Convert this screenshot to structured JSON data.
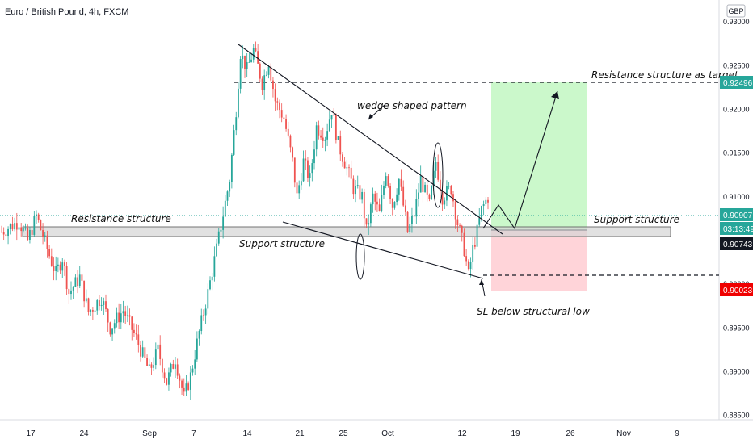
{
  "chart_data": {
    "type": "candlestick",
    "title": "Euro / British Pound, 4h, FXCM",
    "currency": "GBP",
    "ylim": [
      0.8845,
      0.9325
    ],
    "y_ticks": [
      "0.93000",
      "0.92500",
      "0.92000",
      "0.91500",
      "0.91000",
      "0.90500",
      "0.90000",
      "0.89500",
      "0.89000",
      "0.88500"
    ],
    "x_ticks": [
      "17",
      "24",
      "Sep",
      "7",
      "14",
      "21",
      "25",
      "Oct",
      "12",
      "19",
      "26",
      "Nov",
      "9"
    ],
    "colors": {
      "up": "#26a69a",
      "down": "#ef5350",
      "last_price": "#26a69a",
      "target_box": "#b9f6b9",
      "stop_box": "#ffcdd2"
    },
    "price_labels": {
      "target": "0.92496",
      "current": "0.90907",
      "countdown": "03:13:49",
      "entry": "0.90743",
      "stop": "0.90023"
    },
    "annotations": {
      "resistance_target": "Resistance structure as target",
      "wedge": "wedge shaped pattern",
      "resistance_left": "Resistance structure",
      "support_mid": "Support structure",
      "support_right": "Support structure",
      "sl_note": "SL below structural low"
    },
    "price_path": [
      [
        0,
        0.906
      ],
      [
        8,
        0.9072
      ],
      [
        12,
        0.905
      ],
      [
        16,
        0.9078
      ],
      [
        21,
        0.904
      ],
      [
        25,
        0.9012
      ],
      [
        28,
        0.903
      ],
      [
        31,
        0.899
      ],
      [
        36,
        0.9008
      ],
      [
        40,
        0.8968
      ],
      [
        46,
        0.8985
      ],
      [
        50,
        0.895
      ],
      [
        56,
        0.897
      ],
      [
        62,
        0.8938
      ],
      [
        68,
        0.89
      ],
      [
        72,
        0.8925
      ],
      [
        76,
        0.8888
      ],
      [
        80,
        0.8915
      ],
      [
        84,
        0.887
      ],
      [
        87,
        0.8895
      ],
      [
        91,
        0.8945
      ],
      [
        95,
        0.899
      ],
      [
        99,
        0.904
      ],
      [
        102,
        0.908
      ],
      [
        105,
        0.912
      ],
      [
        108,
        0.92
      ],
      [
        110,
        0.9265
      ],
      [
        113,
        0.9245
      ],
      [
        116,
        0.9268
      ],
      [
        120,
        0.923
      ],
      [
        123,
        0.9255
      ],
      [
        126,
        0.921
      ],
      [
        130,
        0.919
      ],
      [
        134,
        0.914
      ],
      [
        136,
        0.91
      ],
      [
        139,
        0.914
      ],
      [
        142,
        0.912
      ],
      [
        145,
        0.918
      ],
      [
        149,
        0.917
      ],
      [
        152,
        0.92
      ],
      [
        155,
        0.916
      ],
      [
        158,
        0.914
      ],
      [
        162,
        0.911
      ],
      [
        166,
        0.91
      ],
      [
        168,
        0.906
      ],
      [
        171,
        0.91
      ],
      [
        174,
        0.908
      ],
      [
        177,
        0.913
      ],
      [
        180,
        0.909
      ],
      [
        183,
        0.912
      ],
      [
        187,
        0.906
      ],
      [
        190,
        0.908
      ],
      [
        193,
        0.912
      ],
      [
        197,
        0.909
      ],
      [
        200,
        0.914
      ],
      [
        203,
        0.91
      ],
      [
        207,
        0.911
      ],
      [
        210,
        0.907
      ],
      [
        213,
        0.904
      ],
      [
        215,
        0.901
      ],
      [
        217,
        0.904
      ],
      [
        219,
        0.906
      ],
      [
        221,
        0.9085
      ],
      [
        224,
        0.91
      ]
    ]
  }
}
